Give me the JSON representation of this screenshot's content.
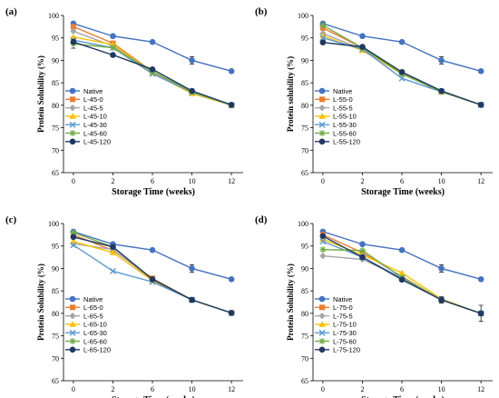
{
  "colors": {
    "Native": "#4472C4",
    "T0": "#ED7D31",
    "T5": "#A5A5A5",
    "T10": "#FFC000",
    "T30": "#5B9BD5",
    "T60": "#70AD47",
    "T120": "#1F3864"
  },
  "chart_data": [
    {
      "type": "line",
      "panel_label": "(a)",
      "xlabel": "Storage Time (weeks)",
      "ylabel": "Protein Solubility (%)",
      "categories": [
        "0",
        "2",
        "6",
        "10",
        "12"
      ],
      "ylim": [
        65,
        100
      ],
      "yticks": [
        65,
        70,
        75,
        80,
        85,
        90,
        95,
        100
      ],
      "legend_position": "left",
      "series": [
        {
          "name": "Native",
          "color_key": "Native",
          "marker": "circle",
          "values": [
            98.2,
            95.4,
            94.1,
            90.0,
            87.6
          ],
          "errors": [
            0.3,
            0.3,
            0.3,
            0.8,
            0.3
          ]
        },
        {
          "name": "L-45-0",
          "color_key": "T0",
          "marker": "square",
          "values": [
            97.5,
            93.8,
            87.5,
            83.0,
            80.0
          ]
        },
        {
          "name": "L-45-5",
          "color_key": "T5",
          "marker": "diamond",
          "values": [
            96.5,
            93.2,
            87.3,
            83.0,
            80.0
          ]
        },
        {
          "name": "L-45-10",
          "color_key": "T10",
          "marker": "triangle",
          "values": [
            95.2,
            93.5,
            87.2,
            82.6,
            80.0
          ]
        },
        {
          "name": "L-45-30",
          "color_key": "T30",
          "marker": "x",
          "values": [
            94.5,
            92.8,
            87.0,
            82.9,
            80.0
          ]
        },
        {
          "name": "L-45-60",
          "color_key": "T60",
          "marker": "star",
          "values": [
            93.7,
            92.8,
            87.5,
            83.0,
            80.0
          ],
          "errors": [
            1.0,
            0,
            0,
            0,
            0
          ]
        },
        {
          "name": "L-45-120",
          "color_key": "T120",
          "marker": "circle",
          "values": [
            94.1,
            91.2,
            88.0,
            83.2,
            80.1
          ]
        }
      ]
    },
    {
      "type": "line",
      "panel_label": "(b)",
      "xlabel": "Storage Time (weeks)",
      "ylabel": "Protein solubility (%)",
      "categories": [
        "0",
        "2",
        "6",
        "10",
        "12"
      ],
      "ylim": [
        65,
        100
      ],
      "yticks": [
        65,
        70,
        75,
        80,
        85,
        90,
        95,
        100
      ],
      "legend_position": "left",
      "series": [
        {
          "name": "Native",
          "color_key": "Native",
          "marker": "circle",
          "values": [
            98.2,
            95.4,
            94.1,
            90.0,
            87.6
          ],
          "errors": [
            0.3,
            0.3,
            0.3,
            0.8,
            0.3
          ]
        },
        {
          "name": "L-55-0",
          "color_key": "T0",
          "marker": "square",
          "values": [
            97.2,
            92.8,
            87.3,
            83.0,
            80.1
          ]
        },
        {
          "name": "L-55-5",
          "color_key": "T5",
          "marker": "diamond",
          "values": [
            96.0,
            92.5,
            87.0,
            83.0,
            80.1
          ]
        },
        {
          "name": "L-55-10",
          "color_key": "T10",
          "marker": "triangle",
          "values": [
            95.5,
            92.2,
            87.0,
            83.0,
            80.1
          ]
        },
        {
          "name": "L-55-30",
          "color_key": "T30",
          "marker": "x",
          "values": [
            95.0,
            92.5,
            86.0,
            83.0,
            80.1
          ]
        },
        {
          "name": "L-55-60",
          "color_key": "T60",
          "marker": "star",
          "values": [
            97.8,
            92.8,
            87.0,
            83.0,
            80.1
          ]
        },
        {
          "name": "L-55-120",
          "color_key": "T120",
          "marker": "circle",
          "values": [
            94.0,
            93.0,
            87.4,
            83.2,
            80.1
          ]
        }
      ]
    },
    {
      "type": "line",
      "panel_label": "(c)",
      "xlabel": "Storage Time (weeks)",
      "ylabel": "Protein Solubility (%)",
      "categories": [
        "0",
        "2",
        "6",
        "10",
        "12"
      ],
      "ylim": [
        65,
        100
      ],
      "yticks": [
        65,
        70,
        75,
        80,
        85,
        90,
        95,
        100
      ],
      "legend_position": "left",
      "series": [
        {
          "name": "Native",
          "color_key": "Native",
          "marker": "circle",
          "values": [
            98.2,
            95.4,
            94.1,
            90.0,
            87.6
          ],
          "errors": [
            0.3,
            0.3,
            0.3,
            0.8,
            0.3
          ]
        },
        {
          "name": "L-65-0",
          "color_key": "T0",
          "marker": "square",
          "values": [
            97.5,
            94.0,
            87.8,
            83.0,
            80.1
          ]
        },
        {
          "name": "L-65-5",
          "color_key": "T5",
          "marker": "diamond",
          "values": [
            95.5,
            94.2,
            87.5,
            83.0,
            80.1
          ]
        },
        {
          "name": "L-65-10",
          "color_key": "T10",
          "marker": "triangle",
          "values": [
            96.0,
            93.5,
            87.3,
            83.0,
            80.1
          ]
        },
        {
          "name": "L-65-30",
          "color_key": "T30",
          "marker": "x",
          "values": [
            95.2,
            89.4,
            87.0,
            83.0,
            80.1
          ]
        },
        {
          "name": "L-65-60",
          "color_key": "T60",
          "marker": "star",
          "values": [
            98.0,
            94.8,
            87.5,
            83.0,
            80.1
          ]
        },
        {
          "name": "L-65-120",
          "color_key": "T120",
          "marker": "circle",
          "values": [
            97.0,
            94.8,
            87.6,
            83.0,
            80.1
          ],
          "errors": [
            0,
            0,
            0,
            0.5,
            0
          ]
        }
      ]
    },
    {
      "type": "line",
      "panel_label": "(d)",
      "xlabel": "Storage Time (weeks)",
      "ylabel": "Protein Solubility (%)",
      "categories": [
        "0",
        "2",
        "6",
        "10",
        "12"
      ],
      "ylim": [
        65,
        100
      ],
      "yticks": [
        65,
        70,
        75,
        80,
        85,
        90,
        95,
        100
      ],
      "legend_position": "left",
      "series": [
        {
          "name": "Native",
          "color_key": "Native",
          "marker": "circle",
          "values": [
            98.2,
            95.4,
            94.1,
            90.0,
            87.6
          ],
          "errors": [
            0.3,
            0.3,
            0.3,
            0.8,
            0.3
          ]
        },
        {
          "name": "L-75-0",
          "color_key": "T0",
          "marker": "square",
          "values": [
            97.5,
            93.5,
            88.2,
            83.0,
            80.0
          ]
        },
        {
          "name": "L-75-5",
          "color_key": "T5",
          "marker": "diamond",
          "values": [
            92.8,
            92.0,
            88.0,
            83.0,
            80.0
          ]
        },
        {
          "name": "L-75-10",
          "color_key": "T10",
          "marker": "triangle",
          "values": [
            96.5,
            93.0,
            89.0,
            83.2,
            80.0
          ]
        },
        {
          "name": "L-75-30",
          "color_key": "T30",
          "marker": "x",
          "values": [
            96.0,
            92.5,
            87.8,
            83.0,
            80.0
          ]
        },
        {
          "name": "L-75-60",
          "color_key": "T60",
          "marker": "star",
          "values": [
            94.2,
            94.0,
            88.0,
            83.0,
            80.0
          ]
        },
        {
          "name": "L-75-120",
          "color_key": "T120",
          "marker": "circle",
          "values": [
            97.2,
            92.5,
            87.5,
            83.0,
            80.0
          ],
          "errors": [
            0,
            0,
            0,
            0.7,
            1.8
          ]
        }
      ]
    }
  ]
}
